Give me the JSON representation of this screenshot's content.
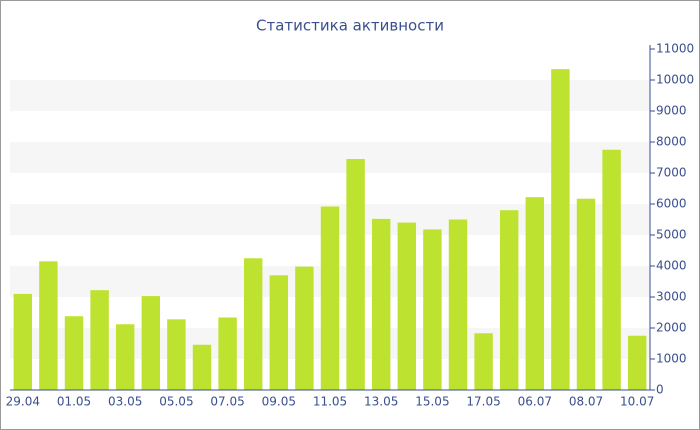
{
  "chart_data": {
    "type": "bar",
    "title": "Статистика активности",
    "categories": [
      "29.04",
      null,
      "01.05",
      null,
      "03.05",
      null,
      "05.05",
      null,
      "07.05",
      null,
      "09.05",
      null,
      "11.05",
      null,
      "13.05",
      null,
      "15.05",
      null,
      "17.05",
      null,
      "06.07",
      null,
      "08.07",
      null,
      "10.07"
    ],
    "values": [
      3100,
      4150,
      2380,
      3220,
      2120,
      3030,
      2280,
      1460,
      2340,
      4250,
      3700,
      3980,
      5920,
      7450,
      5520,
      5400,
      5180,
      5500,
      1830,
      5800,
      6220,
      10350,
      6170,
      7750,
      1750
    ],
    "color": "#bde22f",
    "ylim": [
      0,
      11000
    ],
    "yticks": [
      0,
      1000,
      2000,
      3000,
      4000,
      5000,
      6000,
      7000,
      8000,
      9000,
      10000,
      11000
    ],
    "grid": "bands"
  }
}
